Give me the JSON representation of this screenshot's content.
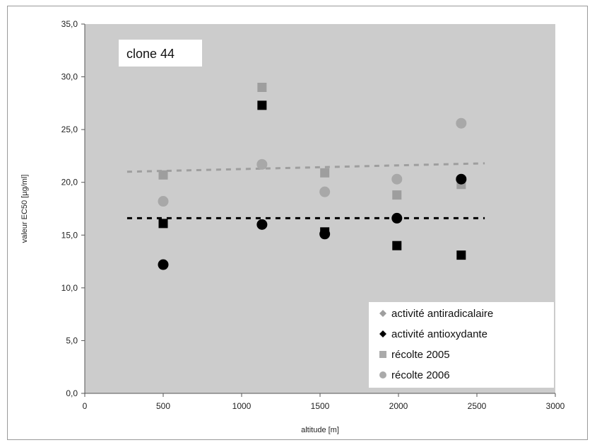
{
  "chart_data": {
    "type": "scatter",
    "annotation": "clone 44",
    "xlabel": "altitude [m]",
    "ylabel": "valeur EC50 [µg/ml]",
    "xlim": [
      0,
      3000
    ],
    "ylim": [
      0,
      35
    ],
    "x_ticks": [
      "0",
      "500",
      "1000",
      "1500",
      "2000",
      "2500",
      "3000"
    ],
    "y_ticks": [
      "0,0",
      "5,0",
      "10,0",
      "15,0",
      "20,0",
      "25,0",
      "30,0",
      "35,0"
    ],
    "background": "#cccccc",
    "grid": false,
    "legend_position": "bottom-right",
    "legend": [
      {
        "label": "activité antiradicalaire",
        "marker": "diamond",
        "color": "#9e9e9e"
      },
      {
        "label": "activité antioxydante",
        "marker": "diamond",
        "color": "#000000"
      },
      {
        "label": "récolte 2005",
        "marker": "square",
        "color": "#aaaaaa"
      },
      {
        "label": "récolte 2006",
        "marker": "circle",
        "color": "#aaaaaa"
      }
    ],
    "series": [
      {
        "activity": "antiradicalaire",
        "harvest": "2005",
        "marker": "square",
        "color": "#9e9e9e",
        "x": [
          500,
          1130,
          1530,
          1990,
          2400
        ],
        "y": [
          20.7,
          29.0,
          20.9,
          18.8,
          19.8
        ]
      },
      {
        "activity": "antiradicalaire",
        "harvest": "2006",
        "marker": "circle",
        "color": "#a8a8a8",
        "x": [
          500,
          1130,
          1530,
          1990,
          2400
        ],
        "y": [
          18.2,
          21.7,
          19.1,
          20.3,
          25.6
        ]
      },
      {
        "activity": "antioxydante",
        "harvest": "2005",
        "marker": "square",
        "color": "#000000",
        "x": [
          500,
          1130,
          1530,
          1990,
          2400
        ],
        "y": [
          16.1,
          27.3,
          15.3,
          14.0,
          13.1
        ]
      },
      {
        "activity": "antioxydante",
        "harvest": "2006",
        "marker": "circle",
        "color": "#000000",
        "x": [
          500,
          1130,
          1530,
          1990,
          2400
        ],
        "y": [
          12.2,
          16.0,
          15.1,
          16.6,
          20.3
        ]
      }
    ],
    "trendlines": [
      {
        "activity": "antiradicalaire",
        "color": "#9e9e9e",
        "x": [
          270,
          2550
        ],
        "y": [
          21.0,
          21.8
        ]
      },
      {
        "activity": "antioxydante",
        "color": "#000000",
        "x": [
          270,
          2550
        ],
        "y": [
          16.6,
          16.6
        ]
      }
    ]
  }
}
